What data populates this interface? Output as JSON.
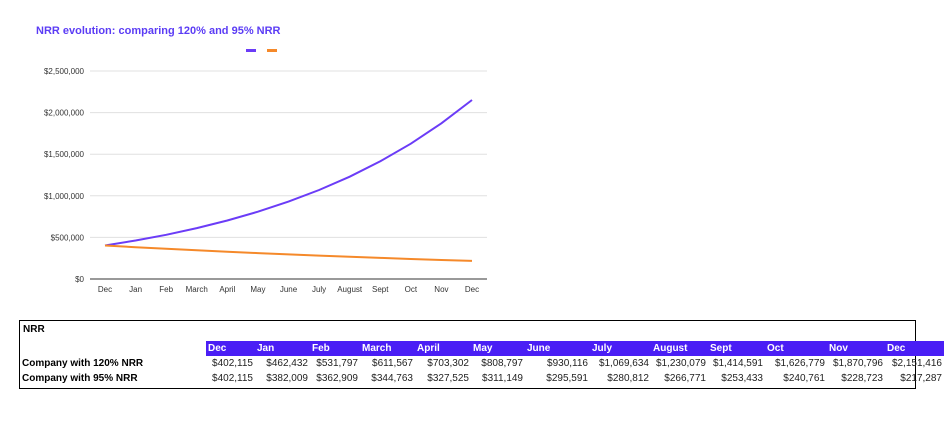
{
  "chart_data": {
    "type": "line",
    "title": "NRR evolution: comparing 120% and 95% NRR",
    "categories": [
      "Dec",
      "Jan",
      "Feb",
      "March",
      "April",
      "May",
      "June",
      "July",
      "August",
      "Sept",
      "Oct",
      "Nov",
      "Dec"
    ],
    "series": [
      {
        "color": "#6b3cf7",
        "values": [
          402115,
          462432,
          531797,
          611567,
          703302,
          808797,
          930116,
          1069634,
          1230079,
          1414591,
          1626779,
          1870796,
          2151416
        ]
      },
      {
        "color": "#f5892a",
        "values": [
          402115,
          382009,
          362909,
          344763,
          327525,
          311149,
          295591,
          280812,
          266771,
          253433,
          240761,
          228723,
          217287
        ]
      }
    ],
    "y_ticks": [
      "$0",
      "$500,000",
      "$1,000,000",
      "$1,500,000",
      "$2,000,000",
      "$2,500,000"
    ],
    "ylim": [
      0,
      2500000
    ],
    "grid": true,
    "legend_position": "top-center"
  },
  "table": {
    "title": "NRR",
    "headers": [
      "Dec",
      "Jan",
      "Feb",
      "March",
      "April",
      "May",
      "June",
      "July",
      "August",
      "Sept",
      "Oct",
      "Nov",
      "Dec"
    ],
    "rows": [
      {
        "label": "Company with 120% NRR",
        "values": [
          "$402,115",
          "$462,432",
          "$531,797",
          "$611,567",
          "$703,302",
          "$808,797",
          "$930,116",
          "$1,069,634",
          "$1,230,079",
          "$1,414,591",
          "$1,626,779",
          "$1,870,796",
          "$2,151,416"
        ]
      },
      {
        "label": "Company with 95% NRR",
        "values": [
          "$402,115",
          "$382,009",
          "$362,909",
          "$344,763",
          "$327,525",
          "$311,149",
          "$295,591",
          "$280,812",
          "$266,771",
          "$253,433",
          "$240,761",
          "$228,723",
          "$217,287"
        ]
      }
    ]
  }
}
